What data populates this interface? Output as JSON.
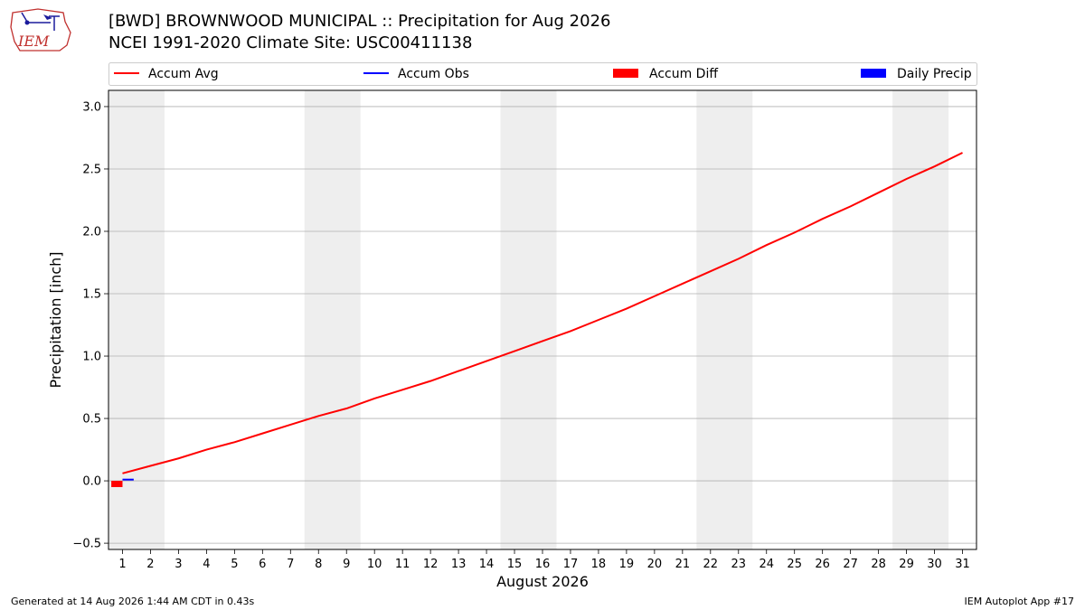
{
  "header": {
    "title_line1": "[BWD] BROWNWOOD MUNICIPAL :: Precipitation for Aug 2026",
    "title_line2": "NCEI 1991-2020 Climate Site: USC00411138",
    "logo_text": "IEM"
  },
  "footer": {
    "generated": "Generated at 14 Aug 2026 1:44 AM CDT in 0.43s",
    "app": "IEM Autoplot App #17"
  },
  "chart_data": {
    "type": "line",
    "title": "[BWD] BROWNWOOD MUNICIPAL :: Precipitation for Aug 2026",
    "subtitle": "NCEI 1991-2020 Climate Site: USC00411138",
    "xlabel": "August 2026",
    "ylabel": "Precipitation [inch]",
    "xlim": [
      0.5,
      31.5
    ],
    "ylim": [
      -0.55,
      3.13
    ],
    "xticks": [
      1,
      2,
      3,
      4,
      5,
      6,
      7,
      8,
      9,
      10,
      11,
      12,
      13,
      14,
      15,
      16,
      17,
      18,
      19,
      20,
      21,
      22,
      23,
      24,
      25,
      26,
      27,
      28,
      29,
      30,
      31
    ],
    "yticks": [
      -0.5,
      0.0,
      0.5,
      1.0,
      1.5,
      2.0,
      2.5,
      3.0
    ],
    "ytick_labels": [
      "−0.5",
      "0.0",
      "0.5",
      "1.0",
      "1.5",
      "2.0",
      "2.5",
      "3.0"
    ],
    "grid": "horizontal",
    "legend_position": "top",
    "weekend_shading": [
      [
        0.5,
        2.5
      ],
      [
        7.5,
        9.5
      ],
      [
        14.5,
        16.5
      ],
      [
        21.5,
        23.5
      ],
      [
        28.5,
        30.5
      ]
    ],
    "legend": [
      {
        "label": "Accum Avg",
        "kind": "line",
        "color": "#ff0000"
      },
      {
        "label": "Accum Obs",
        "kind": "line",
        "color": "#0000ff"
      },
      {
        "label": "Accum Diff",
        "kind": "bar",
        "color": "#ff0000"
      },
      {
        "label": "Daily Precip",
        "kind": "bar",
        "color": "#0000ff"
      }
    ],
    "series": [
      {
        "name": "Accum Avg",
        "kind": "line",
        "color": "#ff0000",
        "x": [
          1,
          2,
          3,
          4,
          5,
          6,
          7,
          8,
          9,
          10,
          11,
          12,
          13,
          14,
          15,
          16,
          17,
          18,
          19,
          20,
          21,
          22,
          23,
          24,
          25,
          26,
          27,
          28,
          29,
          30,
          31
        ],
        "values": [
          0.06,
          0.12,
          0.18,
          0.25,
          0.31,
          0.38,
          0.45,
          0.52,
          0.58,
          0.66,
          0.73,
          0.8,
          0.88,
          0.96,
          1.04,
          1.12,
          1.2,
          1.29,
          1.38,
          1.48,
          1.58,
          1.68,
          1.78,
          1.89,
          1.99,
          2.1,
          2.2,
          2.31,
          2.42,
          2.52,
          2.63
        ]
      },
      {
        "name": "Accum Obs",
        "kind": "line",
        "color": "#0000ff",
        "x": [
          1,
          1.4
        ],
        "values": [
          0.01,
          0.01
        ]
      },
      {
        "name": "Accum Diff",
        "kind": "bar",
        "color": "#ff0000",
        "x": [
          0.8
        ],
        "values": [
          -0.05
        ]
      },
      {
        "name": "Daily Precip",
        "kind": "bar",
        "color": "#0000ff",
        "x": [
          1
        ],
        "values": [
          0.0
        ]
      }
    ]
  }
}
